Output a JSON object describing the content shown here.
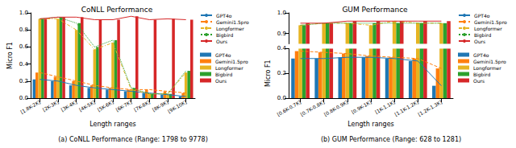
{
  "chart_data": [
    {
      "type": "bar",
      "title": "CoNLL Performance",
      "caption": "(a) CoNLL Performance (Range: 1798 to 9778)",
      "x_label": "Length ranges",
      "y_label": "Micro F1",
      "categories": [
        "[1.8K-2K]",
        "[2K-3K]",
        "[3K-4K]",
        "[4K-5K]",
        "[5K-6K]",
        "[6K-7K]",
        "[7K-8K]",
        "[8K-9K]",
        "[9K-10K]"
      ],
      "ylim": [
        0,
        1.0
      ],
      "yticks": [
        {
          "value": 0,
          "label": "0.0"
        },
        0.2,
        0.4,
        0.6,
        0.8,
        {
          "value": 1,
          "label": "1.0"
        }
      ],
      "grid": false,
      "legend": "right",
      "series": [
        {
          "name": "GPT4o",
          "type": "line",
          "line_style": "solid",
          "color": "#1f77b4",
          "values": [
            0.22,
            0.2,
            0.15,
            0.12,
            0.1,
            0.08,
            0.06,
            0.04,
            0.02
          ]
        },
        {
          "name": "Gemini1.5pro",
          "type": "line",
          "line_style": "dashed",
          "color": "#ff7f0e",
          "values": [
            0.3,
            0.25,
            0.2,
            0.15,
            0.12,
            0.1,
            0.1,
            0.08,
            0.06
          ]
        },
        {
          "name": "Longformer",
          "type": "line",
          "line_style": "dashdot",
          "color": "#e6b422",
          "values": [
            0.93,
            0.93,
            0.8,
            0.57,
            0.65,
            0.1,
            0.05,
            0.05,
            0.3
          ]
        },
        {
          "name": "Bigbird",
          "type": "line",
          "line_style": "dotted",
          "color": "#2ca02c",
          "values": [
            0.93,
            0.95,
            0.88,
            0.6,
            0.68,
            0.12,
            0.05,
            0.05,
            0.32
          ]
        },
        {
          "name": "Ours",
          "type": "line",
          "line_style": "solid",
          "color": "#d62728",
          "values": [
            0.93,
            0.95,
            0.95,
            0.92,
            0.92,
            0.96,
            0.92,
            0.93,
            0.92
          ]
        },
        {
          "name": "GPT4o",
          "type": "bar",
          "color": "#1f77b4",
          "values": [
            0.22,
            0.2,
            0.15,
            0.12,
            0.1,
            0.08,
            0.06,
            0.04,
            0.02
          ]
        },
        {
          "name": "Gemini1.5pro",
          "type": "bar",
          "color": "#ff7f0e",
          "values": [
            0.3,
            0.25,
            0.2,
            0.15,
            0.12,
            0.1,
            0.1,
            0.08,
            0.06
          ]
        },
        {
          "name": "Longformer",
          "type": "bar",
          "color": "#e6b422",
          "values": [
            0.93,
            0.93,
            0.8,
            0.57,
            0.65,
            0.1,
            0.05,
            0.05,
            0.3
          ]
        },
        {
          "name": "Bigbird",
          "type": "bar",
          "color": "#2ca02c",
          "values": [
            0.93,
            0.95,
            0.88,
            0.6,
            0.68,
            0.12,
            0.05,
            0.05,
            0.32
          ]
        },
        {
          "name": "Ours",
          "type": "bar",
          "color": "#d62728",
          "values": [
            0.93,
            0.95,
            0.95,
            0.92,
            0.92,
            0.96,
            0.92,
            0.93,
            0.92
          ]
        }
      ]
    },
    {
      "type": "bar",
      "title": "GUM Performance",
      "caption": "(b) GUM Performance (Range: 628 to 1281)",
      "x_label": "Length ranges",
      "y_label": "Micro F1",
      "categories": [
        "[0.6K-0.7K]",
        "[0.7K-0.8K]",
        "[0.8K-0.9K]",
        "[0.9K-1K]",
        "[1K-1.1K]",
        "[1.1K-1.2K]",
        "[1.2K-1.3K]"
      ],
      "ylim": [
        [
          0,
          0.4
        ],
        [
          0.85,
          1.0
        ]
      ],
      "yticks": [
        [
          {
            "value": 0,
            "label": "0.0"
          },
          0.2,
          0.4
        ],
        [
          0.9,
          {
            "value": 1,
            "label": "1.0"
          }
        ]
      ],
      "grid": false,
      "legend": "right",
      "series": [
        {
          "name": "GPT4o",
          "type": "line",
          "line_style": "solid",
          "color": "#1f77b4",
          "values": [
            0.32,
            0.32,
            0.33,
            0.33,
            0.32,
            0.3,
            0.1
          ]
        },
        {
          "name": "Gemini1.5pro",
          "type": "line",
          "line_style": "dashed",
          "color": "#ff7f0e",
          "values": [
            0.38,
            0.37,
            0.36,
            0.34,
            0.33,
            0.32,
            0.24
          ]
        },
        {
          "name": "Longformer",
          "type": "line",
          "line_style": "dashdot",
          "color": "#e6b422",
          "values": [
            0.94,
            0.95,
            0.95,
            0.94,
            0.96,
            0.95,
            0.95
          ]
        },
        {
          "name": "Bigbird",
          "type": "line",
          "line_style": "dotted",
          "color": "#2ca02c",
          "values": [
            0.94,
            0.95,
            0.95,
            0.95,
            0.95,
            0.95,
            0.95
          ]
        },
        {
          "name": "Ours",
          "type": "line",
          "line_style": "solid",
          "color": "#d62728",
          "values": [
            0.95,
            0.95,
            0.96,
            0.96,
            0.96,
            0.96,
            0.96
          ]
        },
        {
          "name": "GPT4o",
          "type": "bar",
          "color": "#1f77b4",
          "values": [
            0.32,
            0.32,
            0.33,
            0.33,
            0.32,
            0.3,
            0.1
          ]
        },
        {
          "name": "Gemini1.5pro",
          "type": "bar",
          "color": "#ff7f0e",
          "values": [
            0.38,
            0.37,
            0.36,
            0.34,
            0.33,
            0.32,
            0.24
          ]
        },
        {
          "name": "Longformer",
          "type": "bar",
          "color": "#e6b422",
          "values": [
            0.94,
            0.95,
            0.95,
            0.94,
            0.96,
            0.95,
            0.95
          ]
        },
        {
          "name": "Bigbird",
          "type": "bar",
          "color": "#2ca02c",
          "values": [
            0.94,
            0.95,
            0.95,
            0.95,
            0.95,
            0.95,
            0.95
          ]
        },
        {
          "name": "Ours",
          "type": "bar",
          "color": "#d62728",
          "values": [
            0.95,
            0.95,
            0.96,
            0.96,
            0.96,
            0.96,
            0.96
          ]
        }
      ]
    }
  ]
}
